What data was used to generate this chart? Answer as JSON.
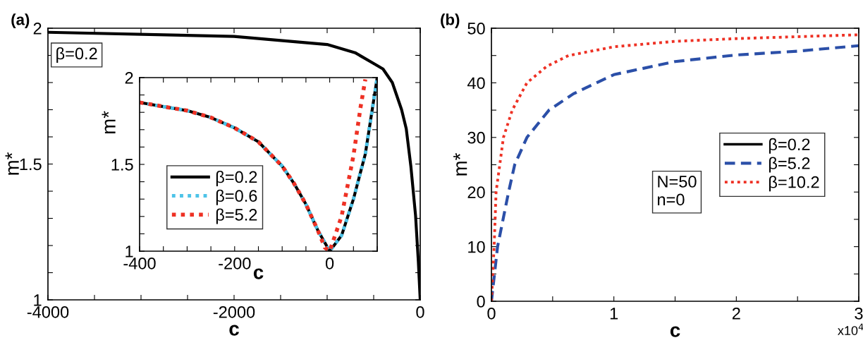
{
  "chart_data": [
    {
      "type": "line",
      "title": "(a)",
      "xlabel": "c",
      "ylabel": "m*",
      "annotations": [
        "β=0.2"
      ],
      "xlim": [
        -4000,
        0
      ],
      "ylim": [
        1,
        2
      ],
      "xticks": [
        -4000,
        {
          "value": -3500,
          "label": null
        },
        {
          "value": -3000,
          "label": null
        },
        {
          "value": -2500,
          "label": null
        },
        -2000,
        {
          "value": -1500,
          "label": null
        },
        {
          "value": -1000,
          "label": null
        },
        {
          "value": -500,
          "label": null
        },
        0
      ],
      "yticks": [
        1,
        {
          "value": 1.1,
          "label": null
        },
        {
          "value": 1.2,
          "label": null
        },
        {
          "value": 1.3,
          "label": null
        },
        {
          "value": 1.4,
          "label": null
        },
        1.5,
        {
          "value": 1.6,
          "label": null
        },
        {
          "value": 1.7,
          "label": null
        },
        {
          "value": 1.8,
          "label": null
        },
        {
          "value": 1.9,
          "label": null
        },
        2
      ],
      "grid": false,
      "legend": false,
      "series": [
        {
          "color": "#000000",
          "line_style": "solid",
          "x": [
            -4000,
            -2000,
            -1000,
            -700,
            -500,
            -400,
            -300,
            -200,
            -150,
            -100,
            -50,
            -20,
            0
          ],
          "values": [
            1.985,
            1.97,
            1.94,
            1.91,
            1.87,
            1.85,
            1.8,
            1.7,
            1.63,
            1.49,
            1.31,
            1.14,
            1.0
          ]
        }
      ]
    },
    {
      "type": "line",
      "xlabel": "c",
      "ylabel": "m*",
      "xlim": [
        -400,
        100
      ],
      "ylim": [
        1,
        2
      ],
      "xticks": [
        -400,
        {
          "value": -350,
          "label": null
        },
        {
          "value": -300,
          "label": null
        },
        {
          "value": -250,
          "label": null
        },
        -200,
        {
          "value": -150,
          "label": null
        },
        {
          "value": -100,
          "label": null
        },
        {
          "value": -50,
          "label": null
        },
        0,
        {
          "value": 50,
          "label": null
        },
        {
          "value": 100,
          "label": null
        }
      ],
      "yticks": [
        1,
        {
          "value": 1.1,
          "label": null
        },
        {
          "value": 1.2,
          "label": null
        },
        {
          "value": 1.3,
          "label": null
        },
        {
          "value": 1.4,
          "label": null
        },
        1.5,
        {
          "value": 1.6,
          "label": null
        },
        {
          "value": 1.7,
          "label": null
        },
        {
          "value": 1.8,
          "label": null
        },
        {
          "value": 1.9,
          "label": null
        },
        2
      ],
      "grid": false,
      "legend": "lower left",
      "series": [
        {
          "name": "β=0.2",
          "color": "#000000",
          "line_style": "solid",
          "x": [
            -400,
            -350,
            -300,
            -250,
            -200,
            -150,
            -100,
            -75,
            -50,
            -25,
            0,
            25,
            50,
            75,
            100
          ],
          "values": [
            1.857,
            1.833,
            1.81,
            1.77,
            1.71,
            1.63,
            1.49,
            1.39,
            1.27,
            1.12,
            1.0,
            1.09,
            1.3,
            1.56,
            2.0
          ]
        },
        {
          "name": "β=0.6",
          "color": "#4dc3e8",
          "line_style": "dotted",
          "x": [
            -400,
            -350,
            -300,
            -250,
            -200,
            -150,
            -100,
            -75,
            -50,
            -25,
            0,
            25,
            50,
            75,
            100
          ],
          "values": [
            1.857,
            1.833,
            1.81,
            1.77,
            1.71,
            1.63,
            1.49,
            1.39,
            1.27,
            1.12,
            1.0,
            1.09,
            1.3,
            1.56,
            2.0
          ]
        },
        {
          "name": "β=5.2",
          "color": "#ee3124",
          "line_style": "dotted",
          "x": [
            -400,
            -350,
            -300,
            -250,
            -200,
            -150,
            -100,
            -75,
            -50,
            -25,
            -10,
            0,
            25,
            50,
            65,
            75
          ],
          "values": [
            1.857,
            1.833,
            1.81,
            1.77,
            1.71,
            1.63,
            1.49,
            1.39,
            1.27,
            1.12,
            1.02,
            1.0,
            1.2,
            1.55,
            1.83,
            1.99
          ]
        }
      ]
    },
    {
      "type": "line",
      "title": "(b)",
      "xlabel": "c",
      "ylabel": "m*",
      "annotations": [
        "N=50\nn=0",
        "x10$^{4}$"
      ],
      "xlim": [
        0,
        3
      ],
      "ylim": [
        0,
        50
      ],
      "xticks": [
        0,
        {
          "value": 0.5,
          "label": null
        },
        1,
        {
          "value": 1.5,
          "label": null
        },
        2,
        {
          "value": 2.5,
          "label": null
        },
        3
      ],
      "yticks": [
        0,
        {
          "value": 5,
          "label": null
        },
        10,
        {
          "value": 15,
          "label": null
        },
        20,
        {
          "value": 25,
          "label": null
        },
        30,
        {
          "value": 35,
          "label": null
        },
        40,
        {
          "value": 45,
          "label": null
        },
        50
      ],
      "grid": false,
      "legend": "center right",
      "series": [
        {
          "name": "β=0.2",
          "color": "#000000",
          "line_style": "solid"
        },
        {
          "name": "β=5.2",
          "color": "#2b4fa8",
          "line_style": "dashed",
          "x": [
            0,
            0.05,
            0.14,
            0.19,
            0.29,
            0.47,
            0.67,
            1.0,
            1.5,
            2.0,
            2.5,
            3.0
          ],
          "values": [
            0,
            10,
            20,
            25,
            30,
            35,
            38,
            41.5,
            43.9,
            45.1,
            45.8,
            46.8
          ]
        },
        {
          "name": "β=10.2",
          "color": "#ee3124",
          "line_style": "dotted",
          "x": [
            0,
            0.022,
            0.038,
            0.098,
            0.17,
            0.29,
            0.45,
            0.63,
            1.0,
            1.5,
            2.0,
            3.0
          ],
          "values": [
            0,
            10,
            20,
            30,
            35,
            40,
            43,
            45,
            46.6,
            47.6,
            48.1,
            48.8
          ]
        }
      ]
    }
  ]
}
